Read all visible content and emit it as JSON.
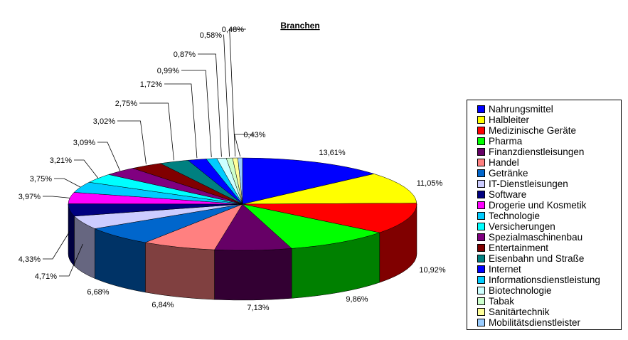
{
  "chart_data": {
    "type": "pie",
    "title": "Branchen",
    "legend_position": "right",
    "slices": [
      {
        "label": "Nahrungsmittel",
        "value": 13.61,
        "display": "13,61%",
        "color": "#0000ff"
      },
      {
        "label": "Halbleiter",
        "value": 11.05,
        "display": "11,05%",
        "color": "#ffff00"
      },
      {
        "label": "Medizinische Geräte",
        "value": 10.92,
        "display": "10,92%",
        "color": "#ff0000"
      },
      {
        "label": "Pharma",
        "value": 9.86,
        "display": "9,86%",
        "color": "#00ff00"
      },
      {
        "label": "Finanzdienstleisungen",
        "value": 7.13,
        "display": "7,13%",
        "color": "#660066"
      },
      {
        "label": "Handel",
        "value": 6.84,
        "display": "6,84%",
        "color": "#ff8080"
      },
      {
        "label": "Getränke",
        "value": 6.68,
        "display": "6,68%",
        "color": "#0066cc"
      },
      {
        "label": "IT-Dienstleisungen",
        "value": 4.71,
        "display": "4,71%",
        "color": "#ccccff"
      },
      {
        "label": "Software",
        "value": 4.33,
        "display": "4,33%",
        "color": "#000080"
      },
      {
        "label": "Drogerie und Kosmetik",
        "value": 3.97,
        "display": "3,97%",
        "color": "#ff00ff"
      },
      {
        "label": "Technologie",
        "value": 3.75,
        "display": "3,75%",
        "color": "#00ccff"
      },
      {
        "label": "Versicherungen",
        "value": 3.21,
        "display": "3,21%",
        "color": "#00ffff"
      },
      {
        "label": "Spezialmaschinenbau",
        "value": 3.09,
        "display": "3,09%",
        "color": "#800080"
      },
      {
        "label": "Entertainment",
        "value": 3.02,
        "display": "3,02%",
        "color": "#800000"
      },
      {
        "label": "Eisenbahn und Straße",
        "value": 2.75,
        "display": "2,75%",
        "color": "#008080"
      },
      {
        "label": "Internet",
        "value": 1.72,
        "display": "1,72%",
        "color": "#0000ff"
      },
      {
        "label": "Informationsdienstleistung",
        "value": 0.99,
        "display": "0,99%",
        "color": "#00ccff"
      },
      {
        "label": "Biotechnologie",
        "value": 0.87,
        "display": "0,87%",
        "color": "#ccffff"
      },
      {
        "label": "Tabak",
        "value": 0.58,
        "display": "0,58%",
        "color": "#ccffcc"
      },
      {
        "label": "Sanitärtechnik",
        "value": 0.48,
        "display": "0,48%",
        "color": "#ffff99"
      },
      {
        "label": "Mobilitätsdienstleister",
        "value": 0.43,
        "display": "0,43%",
        "color": "#99ccff"
      }
    ]
  }
}
